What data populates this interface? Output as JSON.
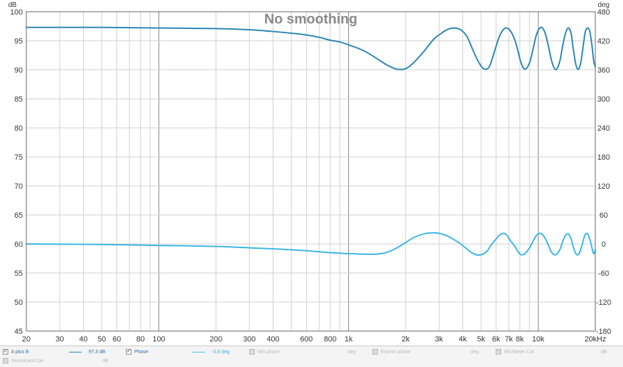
{
  "chart_data": {
    "type": "line",
    "title": "No smoothing",
    "x_scale": "log",
    "xlim": [
      20,
      20000
    ],
    "x_ticks": [
      {
        "v": 20,
        "label": "20"
      },
      {
        "v": 30,
        "label": "30"
      },
      {
        "v": 40,
        "label": "40"
      },
      {
        "v": 50,
        "label": "50"
      },
      {
        "v": 60,
        "label": "60"
      },
      {
        "v": 80,
        "label": "80"
      },
      {
        "v": 100,
        "label": "100"
      },
      {
        "v": 200,
        "label": "200"
      },
      {
        "v": 300,
        "label": "300"
      },
      {
        "v": 400,
        "label": "400"
      },
      {
        "v": 600,
        "label": "600"
      },
      {
        "v": 800,
        "label": "800"
      },
      {
        "v": 1000,
        "label": "1k"
      },
      {
        "v": 2000,
        "label": "2k"
      },
      {
        "v": 3000,
        "label": "3k"
      },
      {
        "v": 4000,
        "label": "4k"
      },
      {
        "v": 5000,
        "label": "5k"
      },
      {
        "v": 6000,
        "label": "6k"
      },
      {
        "v": 7000,
        "label": "7k"
      },
      {
        "v": 8000,
        "label": "8k"
      },
      {
        "v": 10000,
        "label": "10k"
      },
      {
        "v": 20000,
        "label": "20kHz"
      }
    ],
    "left_axis": {
      "unit_label": "dB",
      "ylim": [
        45,
        100
      ],
      "ticks": [
        45,
        50,
        55,
        60,
        65,
        70,
        75,
        80,
        85,
        90,
        95,
        100
      ]
    },
    "right_axis": {
      "unit_label": "deg",
      "ylim": [
        -180,
        480
      ],
      "ticks": [
        -180,
        -120,
        -60,
        0,
        60,
        120,
        180,
        240,
        300,
        360,
        420,
        480
      ]
    },
    "grid": true,
    "series": [
      {
        "name": "A plus B",
        "axis": "left",
        "color": "#2a86b2",
        "x": [
          20,
          50,
          100,
          200,
          300,
          400,
          500,
          600,
          700,
          800,
          900,
          1000,
          1200,
          1400,
          1600,
          1800,
          2000,
          2200,
          2500,
          2800,
          3000,
          3300,
          3600,
          3900,
          4200,
          4500,
          4800,
          5100,
          5400,
          5600,
          5900,
          6200,
          6500,
          6800,
          7100,
          7500,
          7800,
          8100,
          8500,
          9000,
          9400,
          9800,
          10300,
          10800,
          11300,
          11800,
          12400,
          13000,
          13400,
          13900,
          14400,
          14900,
          15300,
          15800,
          16300,
          16800,
          17300,
          17700,
          18200,
          18700,
          19200,
          19600,
          20000
        ],
        "y": [
          97.3,
          97.3,
          97.2,
          97.1,
          96.9,
          96.6,
          96.3,
          96.0,
          95.6,
          95.1,
          94.8,
          94.3,
          93.3,
          92.0,
          90.8,
          90.1,
          90.2,
          91.2,
          93.2,
          95.2,
          96.0,
          96.9,
          97.2,
          96.9,
          95.8,
          93.6,
          91.6,
          90.3,
          90.2,
          91.0,
          93.3,
          95.5,
          96.8,
          97.2,
          96.8,
          95.3,
          93.4,
          91.3,
          90.1,
          91.2,
          93.6,
          96.1,
          97.3,
          96.6,
          94.2,
          91.4,
          90.0,
          91.5,
          93.8,
          96.2,
          97.2,
          96.3,
          93.6,
          90.9,
          90.1,
          91.4,
          94.3,
          96.5,
          97.2,
          96.6,
          94.2,
          91.6,
          90.5
        ]
      },
      {
        "name": "Phase",
        "axis": "right",
        "color": "#3ab6e4",
        "x": [
          20,
          50,
          100,
          200,
          300,
          400,
          500,
          600,
          700,
          800,
          900,
          1000,
          1200,
          1400,
          1600,
          1800,
          2000,
          2200,
          2500,
          2800,
          3000,
          3300,
          3600,
          3900,
          4200,
          4500,
          4800,
          5100,
          5400,
          5600,
          5900,
          6200,
          6500,
          6800,
          7100,
          7500,
          7800,
          8100,
          8500,
          9000,
          9400,
          9800,
          10300,
          10800,
          11300,
          11800,
          12400,
          13000,
          13400,
          13900,
          14400,
          14900,
          15300,
          15800,
          16300,
          16800,
          17300,
          17700,
          18200,
          18700,
          19200,
          19600,
          20000
        ],
        "y": [
          0,
          -1,
          -3,
          -5,
          -8,
          -10,
          -12,
          -14,
          -16,
          -18,
          -19,
          -20,
          -21,
          -21,
          -17,
          -8,
          3,
          13,
          21,
          23,
          22,
          17,
          9,
          0,
          -10,
          -19,
          -23,
          -21,
          -14,
          -4,
          7,
          17,
          22,
          19,
          8,
          -4,
          -15,
          -22,
          -20,
          -8,
          6,
          18,
          22,
          14,
          -2,
          -18,
          -22,
          -12,
          3,
          17,
          21,
          11,
          -6,
          -20,
          -22,
          -10,
          8,
          20,
          21,
          10,
          -8,
          -20,
          -12
        ]
      }
    ]
  },
  "legend": [
    {
      "label": "A plus B",
      "checked": true,
      "value": "97,3 dB"
    },
    {
      "label": "Phase",
      "checked": true,
      "value": "-0,6 deg"
    },
    {
      "label": "Min phase",
      "checked": false,
      "unit": "deg"
    },
    {
      "label": "Excess phase",
      "checked": false,
      "unit": "deg"
    },
    {
      "label": "Mic/Meter Cal",
      "checked": false,
      "unit": "dB"
    },
    {
      "label": "Soundcard Cal",
      "checked": false,
      "unit": "dB"
    }
  ],
  "colors": {
    "grid": "#cfcfcf",
    "grid_major": "#888888",
    "axis_text": "#333333",
    "title": "#888888"
  }
}
